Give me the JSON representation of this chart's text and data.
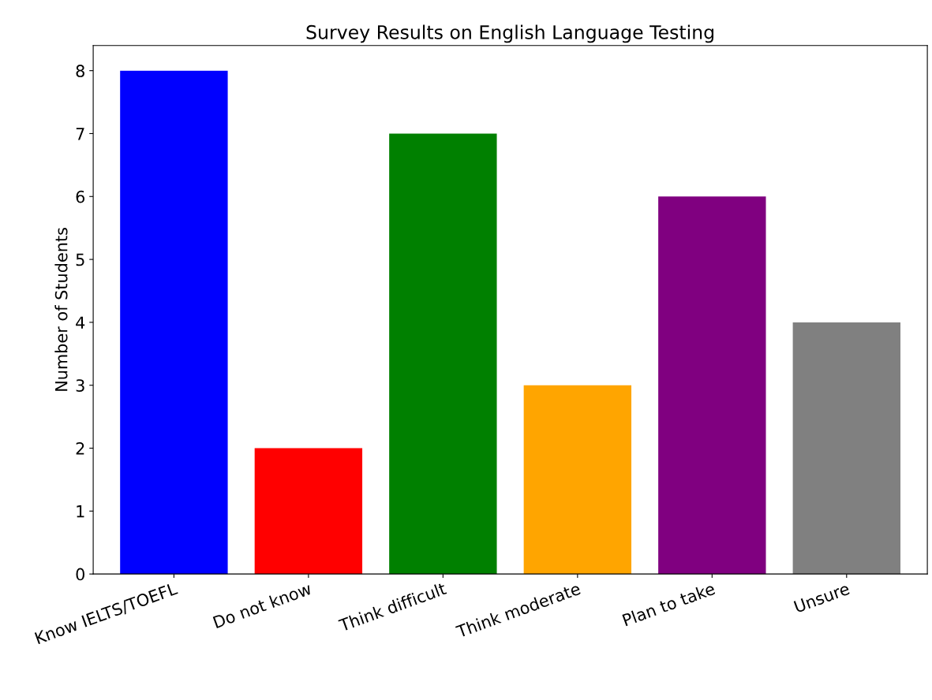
{
  "chart_data": {
    "type": "bar",
    "title": "Survey Results on English Language Testing",
    "ylabel": "Number of Students",
    "categories": [
      "Know IELTS/TOEFL",
      "Do not know",
      "Think difficult",
      "Think moderate",
      "Plan to take",
      "Unsure"
    ],
    "values": [
      8,
      2,
      7,
      3,
      6,
      4
    ],
    "colors": [
      "#0000ff",
      "#ff0000",
      "#008000",
      "#ffa500",
      "#800080",
      "#808080"
    ],
    "ylim": [
      0,
      8.4
    ],
    "yticks": [
      0,
      1,
      2,
      3,
      4,
      5,
      6,
      7,
      8
    ],
    "grid": false
  }
}
